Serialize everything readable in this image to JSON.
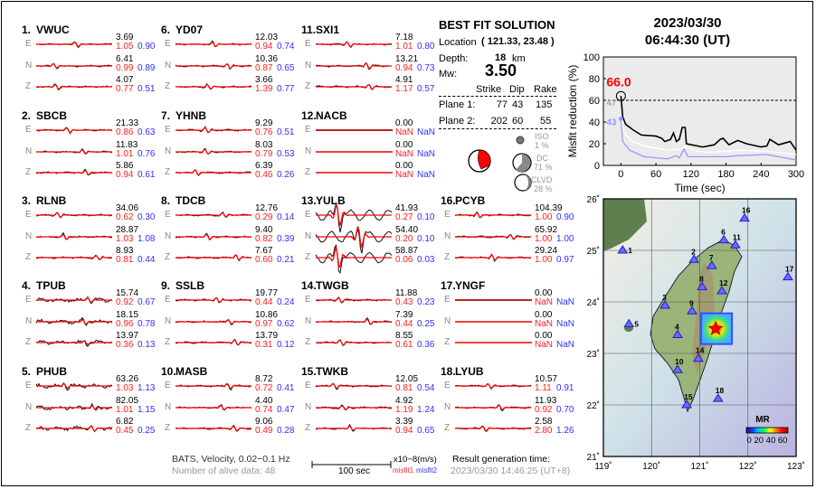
{
  "stations": [
    {
      "num": "1.",
      "name": "VWUC",
      "comps": [
        {
          "c": "E",
          "amp": "3.69",
          "m1": "1.05",
          "m2": "0.90"
        },
        {
          "c": "N",
          "amp": "6.41",
          "m1": "0.99",
          "m2": "0.89"
        },
        {
          "c": "Z",
          "amp": "4.07",
          "m1": "0.77",
          "m2": "0.51"
        }
      ]
    },
    {
      "num": "2.",
      "name": "SBCB",
      "comps": [
        {
          "c": "E",
          "amp": "21.33",
          "m1": "0.86",
          "m2": "0.63"
        },
        {
          "c": "N",
          "amp": "11.83",
          "m1": "1.01",
          "m2": "0.76"
        },
        {
          "c": "Z",
          "amp": "5.86",
          "m1": "0.94",
          "m2": "0.61"
        }
      ]
    },
    {
      "num": "3.",
      "name": "RLNB",
      "comps": [
        {
          "c": "E",
          "amp": "34.06",
          "m1": "0.62",
          "m2": "0.30"
        },
        {
          "c": "N",
          "amp": "28.87",
          "m1": "1.03",
          "m2": "1.08"
        },
        {
          "c": "Z",
          "amp": "8.93",
          "m1": "0.81",
          "m2": "0.44"
        }
      ]
    },
    {
      "num": "4.",
      "name": "TPUB",
      "comps": [
        {
          "c": "E",
          "amp": "15.74",
          "m1": "0.92",
          "m2": "0.67"
        },
        {
          "c": "N",
          "amp": "18.15",
          "m1": "0.96",
          "m2": "0.78"
        },
        {
          "c": "Z",
          "amp": "13.97",
          "m1": "0.36",
          "m2": "0.13"
        }
      ]
    },
    {
      "num": "5.",
      "name": "PHUB",
      "comps": [
        {
          "c": "E",
          "amp": "63.26",
          "m1": "1.03",
          "m2": "1.13"
        },
        {
          "c": "N",
          "amp": "82.05",
          "m1": "1.01",
          "m2": "1.15"
        },
        {
          "c": "Z",
          "amp": "6.82",
          "m1": "0.45",
          "m2": "0.25"
        }
      ]
    },
    {
      "num": "6.",
      "name": "YD07",
      "comps": [
        {
          "c": "E",
          "amp": "12.03",
          "m1": "0.94",
          "m2": "0.74"
        },
        {
          "c": "N",
          "amp": "10.36",
          "m1": "0.87",
          "m2": "0.65"
        },
        {
          "c": "Z",
          "amp": "3.66",
          "m1": "1.39",
          "m2": "0.77"
        }
      ]
    },
    {
      "num": "7.",
      "name": "YHNB",
      "comps": [
        {
          "c": "E",
          "amp": "9.29",
          "m1": "0.76",
          "m2": "0.51"
        },
        {
          "c": "N",
          "amp": "8.03",
          "m1": "0.79",
          "m2": "0.53"
        },
        {
          "c": "Z",
          "amp": "6.39",
          "m1": "0.46",
          "m2": "0.26"
        }
      ]
    },
    {
      "num": "8.",
      "name": "TDCB",
      "comps": [
        {
          "c": "E",
          "amp": "12.76",
          "m1": "0.29",
          "m2": "0.14"
        },
        {
          "c": "N",
          "amp": "9.40",
          "m1": "0.82",
          "m2": "0.39"
        },
        {
          "c": "Z",
          "amp": "7.67",
          "m1": "0.60",
          "m2": "0.21"
        }
      ]
    },
    {
      "num": "9.",
      "name": "SSLB",
      "comps": [
        {
          "c": "E",
          "amp": "19.77",
          "m1": "0.44",
          "m2": "0.24"
        },
        {
          "c": "N",
          "amp": "10.86",
          "m1": "0.97",
          "m2": "0.62"
        },
        {
          "c": "Z",
          "amp": "13.79",
          "m1": "0.31",
          "m2": "0.12"
        }
      ]
    },
    {
      "num": "10.",
      "name": "MASB",
      "comps": [
        {
          "c": "E",
          "amp": "8.72",
          "m1": "0.72",
          "m2": "0.41"
        },
        {
          "c": "N",
          "amp": "4.40",
          "m1": "0.74",
          "m2": "0.47"
        },
        {
          "c": "Z",
          "amp": "9.06",
          "m1": "0.49",
          "m2": "0.28"
        }
      ]
    },
    {
      "num": "11.",
      "name": "SXI1",
      "comps": [
        {
          "c": "E",
          "amp": "7.18",
          "m1": "1.01",
          "m2": "0.80"
        },
        {
          "c": "N",
          "amp": "13.21",
          "m1": "0.94",
          "m2": "0.73"
        },
        {
          "c": "Z",
          "amp": "4.91",
          "m1": "1.17",
          "m2": "0.57"
        }
      ]
    },
    {
      "num": "12.",
      "name": "NACB",
      "comps": [
        {
          "c": "E",
          "amp": "0.00",
          "m1": "NaN",
          "m2": "NaN"
        },
        {
          "c": "N",
          "amp": "0.00",
          "m1": "NaN",
          "m2": "NaN"
        },
        {
          "c": "Z",
          "amp": "0.00",
          "m1": "NaN",
          "m2": "NaN"
        }
      ]
    },
    {
      "num": "13.",
      "name": "YULB",
      "comps": [
        {
          "c": "E",
          "amp": "41.93",
          "m1": "0.27",
          "m2": "0.10"
        },
        {
          "c": "N",
          "amp": "54.40",
          "m1": "0.20",
          "m2": "0.10"
        },
        {
          "c": "Z",
          "amp": "58.87",
          "m1": "0.06",
          "m2": "0.03"
        }
      ]
    },
    {
      "num": "14.",
      "name": "TWGB",
      "comps": [
        {
          "c": "E",
          "amp": "11.88",
          "m1": "0.43",
          "m2": "0.23"
        },
        {
          "c": "N",
          "amp": "7.39",
          "m1": "0.44",
          "m2": "0.25"
        },
        {
          "c": "Z",
          "amp": "8.55",
          "m1": "0.61",
          "m2": "0.36"
        }
      ]
    },
    {
      "num": "15.",
      "name": "TWKB",
      "comps": [
        {
          "c": "E",
          "amp": "12.05",
          "m1": "0.81",
          "m2": "0.54"
        },
        {
          "c": "N",
          "amp": "4.92",
          "m1": "1.19",
          "m2": "1.24"
        },
        {
          "c": "Z",
          "amp": "3.39",
          "m1": "0.94",
          "m2": "0.65"
        }
      ]
    },
    {
      "num": "16.",
      "name": "PCYB",
      "comps": [
        {
          "c": "E",
          "amp": "104.39",
          "m1": "1.00",
          "m2": "0.90"
        },
        {
          "c": "N",
          "amp": "65.92",
          "m1": "1.00",
          "m2": "1.00"
        },
        {
          "c": "Z",
          "amp": "29.24",
          "m1": "1.00",
          "m2": "0.97"
        }
      ]
    },
    {
      "num": "17.",
      "name": "YNGF",
      "comps": [
        {
          "c": "E",
          "amp": "0.00",
          "m1": "NaN",
          "m2": "NaN"
        },
        {
          "c": "N",
          "amp": "0.00",
          "m1": "NaN",
          "m2": "NaN"
        },
        {
          "c": "Z",
          "amp": "0.00",
          "m1": "NaN",
          "m2": "NaN"
        }
      ]
    },
    {
      "num": "18.",
      "name": "LYUB",
      "comps": [
        {
          "c": "E",
          "amp": "10.57",
          "m1": "1.11",
          "m2": "0.91"
        },
        {
          "c": "N",
          "amp": "11.93",
          "m1": "0.92",
          "m2": "0.70"
        },
        {
          "c": "Z",
          "amp": "2.58",
          "m1": "2.80",
          "m2": "1.26"
        }
      ]
    }
  ],
  "solution": {
    "title": "BEST FIT SOLUTION",
    "location_label": "Location",
    "location_value": "( 121.33,  23.48 )",
    "depth_label": "Depth:",
    "depth_value": "18",
    "depth_unit": "km",
    "mw_label": "Mw:",
    "mw_value": "3.50",
    "headers": [
      "Strike",
      "Dip",
      "Rake"
    ],
    "planes": [
      {
        "label": "Plane 1:",
        "strike": "77",
        "dip": "43",
        "rake": "135"
      },
      {
        "label": "Plane 2:",
        "strike": "202",
        "dip": "60",
        "rake": "55"
      }
    ],
    "iso_label": "ISO",
    "iso_pct": "1  %",
    "dc_label": "DC",
    "dc_pct": "71 %",
    "clvd_label": "CLVD",
    "clvd_pct": "28 %"
  },
  "event_time": {
    "date": "2023/03/30",
    "time": "06:44:30  (UT)"
  },
  "footer": {
    "info": "BATS, Velocity, 0.02−0.1 Hz",
    "alive": "Number of alive data: 48",
    "scale_label": "100 sec",
    "unit": "x10−8(m/s)",
    "misfit1": "misfit1",
    "misfit2": "misfit2",
    "gen_label": "Result generation time:",
    "gen_time": "2023/03/30 14:46:25 (UT+8)"
  },
  "chart_data": {
    "type": "line",
    "xlabel": "Time (sec)",
    "ylabel": "Misfit reduction (%)",
    "xlim": [
      -30,
      300
    ],
    "ylim": [
      0,
      100
    ],
    "xticks": [
      0,
      60,
      120,
      180,
      240,
      300
    ],
    "yticks": [
      0,
      20,
      40,
      60,
      80,
      100
    ],
    "threshold": 60,
    "best_label": "66.0",
    "label_white": "47",
    "label_blue": "43",
    "series": [
      {
        "name": "best",
        "color": "#000000",
        "x": [
          0,
          3,
          8,
          20,
          35,
          60,
          70,
          75,
          85,
          90,
          95,
          100,
          105,
          110,
          112,
          130,
          140,
          160,
          170,
          175,
          185,
          200,
          215,
          240,
          250,
          255,
          270,
          290,
          300
        ],
        "y": [
          64,
          45,
          38,
          33,
          28,
          27,
          25,
          22,
          24,
          30,
          22,
          24,
          35,
          35,
          20,
          18,
          17,
          19,
          24,
          25,
          19,
          23,
          20,
          17,
          18,
          24,
          19,
          22,
          14
        ]
      },
      {
        "name": "white",
        "color": "#ffffff",
        "x": [
          0,
          5,
          20,
          40,
          60,
          80,
          100,
          110,
          130,
          150,
          200,
          250,
          300
        ],
        "y": [
          47,
          30,
          22,
          18,
          16,
          14,
          15,
          17,
          13,
          12,
          14,
          13,
          10
        ]
      },
      {
        "name": "blue",
        "color": "#9a9aff",
        "x": [
          0,
          3,
          15,
          40,
          60,
          80,
          95,
          100,
          108,
          115,
          150,
          180,
          200,
          250,
          270,
          300
        ],
        "y": [
          43,
          22,
          14,
          8,
          7,
          6,
          9,
          7,
          15,
          8,
          8,
          8,
          9,
          10,
          8,
          5
        ]
      }
    ]
  },
  "map": {
    "lon_ticks": [
      "119˚",
      "120˚",
      "121˚",
      "122˚",
      "123˚"
    ],
    "lat_ticks": [
      "26˚",
      "25˚",
      "24˚",
      "23˚",
      "22˚",
      "21˚"
    ],
    "colorbar_title": "MR",
    "colorbar_ticks": "0 20 40 60",
    "epicenter": {
      "lon": 121.33,
      "lat": 23.48
    },
    "stations": [
      {
        "id": "1",
        "lon": 119.4,
        "lat": 25.0
      },
      {
        "id": "2",
        "lon": 120.88,
        "lat": 24.82
      },
      {
        "id": "3",
        "lon": 120.28,
        "lat": 23.93
      },
      {
        "id": "4",
        "lon": 120.54,
        "lat": 23.36
      },
      {
        "id": "5",
        "lon": 119.53,
        "lat": 23.57
      },
      {
        "id": "6",
        "lon": 121.5,
        "lat": 25.2
      },
      {
        "id": "7",
        "lon": 121.25,
        "lat": 24.7
      },
      {
        "id": "8",
        "lon": 121.05,
        "lat": 24.29
      },
      {
        "id": "9",
        "lon": 120.84,
        "lat": 23.82
      },
      {
        "id": "10",
        "lon": 120.54,
        "lat": 22.68
      },
      {
        "id": "11",
        "lon": 121.74,
        "lat": 25.1
      },
      {
        "id": "12",
        "lon": 121.46,
        "lat": 24.21
      },
      {
        "id": "14",
        "lon": 120.97,
        "lat": 22.9
      },
      {
        "id": "15",
        "lon": 120.73,
        "lat": 22.0
      },
      {
        "id": "16",
        "lon": 121.93,
        "lat": 25.62
      },
      {
        "id": "17",
        "lon": 122.83,
        "lat": 24.48
      },
      {
        "id": "18",
        "lon": 121.38,
        "lat": 22.12
      }
    ]
  }
}
